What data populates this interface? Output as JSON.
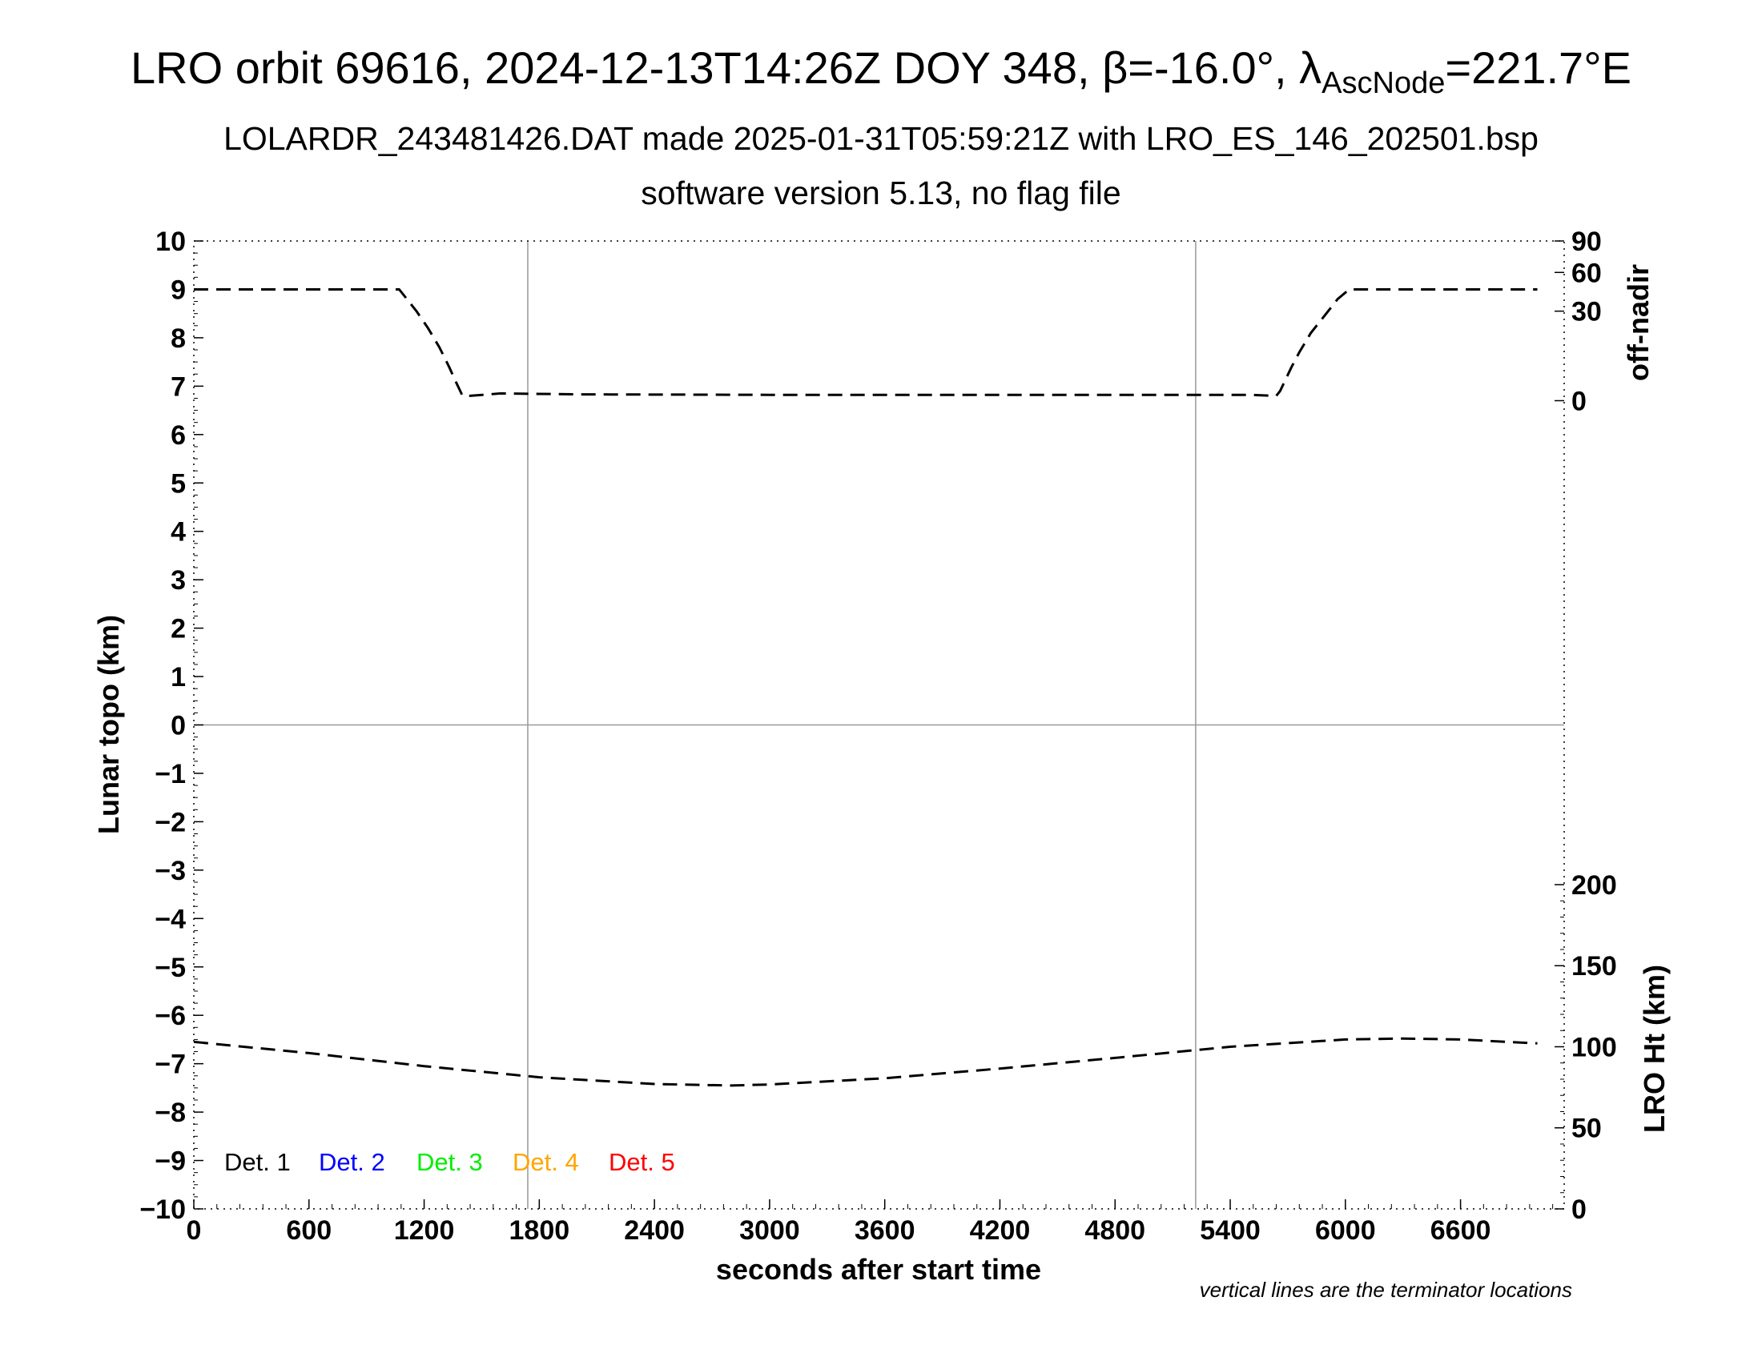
{
  "chart_data": {
    "type": "line",
    "title": {
      "main": "LRO orbit 69616, 2024-12-13T14:26Z DOY 348, β=-16.0°, λ",
      "sub": "AscNode",
      "end": "=221.7°E"
    },
    "subtitle": "LOLARDR_243481426.DAT made 2025-01-31T05:59:21Z with LRO_ES_146_202501.bsp",
    "subtitle2": "software version 5.13, no flag file",
    "xlabel": "seconds after start time",
    "ylabel_left": "Lunar topo (km)",
    "ylabel_right_top": "off-nadir",
    "ylabel_right_bottom": "LRO Ht (km)",
    "note": "vertical lines are the terminator locations",
    "xlim": [
      0,
      7140
    ],
    "ylim_left": [
      -10,
      10
    ],
    "x_ticks": [
      "0",
      "600",
      "1200",
      "1800",
      "2400",
      "3000",
      "3600",
      "4200",
      "4800",
      "5400",
      "6000",
      "6600"
    ],
    "y_ticks_left": [
      "10",
      "9",
      "8",
      "7",
      "6",
      "5",
      "4",
      "3",
      "2",
      "1",
      "0",
      "−1",
      "−2",
      "−3",
      "−4",
      "−5",
      "−6",
      "−7",
      "−8",
      "−9",
      "−10"
    ],
    "right_top_ticks": [
      "90",
      "60",
      "30",
      "0"
    ],
    "right_bottom_ticks": [
      "200",
      "150",
      "100",
      "50",
      "0"
    ],
    "terminators_x": [
      1740,
      5220
    ],
    "grid": "terminator lines and zero line",
    "legend": {
      "placement": "bottom-left",
      "entries": [
        {
          "label": "Det. 1",
          "color": "#000000"
        },
        {
          "label": "Det. 2",
          "color": "#0000ff"
        },
        {
          "label": "Det. 3",
          "color": "#00ee00"
        },
        {
          "label": "Det. 4",
          "color": "#ffa500"
        },
        {
          "label": "Det. 5",
          "color": "#ff0000"
        }
      ]
    },
    "series": [
      {
        "axis": "off-nadir (plotted on left km scale)",
        "style": "dashed",
        "x": [
          0,
          1070,
          1100,
          1160,
          1220,
          1280,
          1330,
          1370,
          1400,
          1420,
          1440,
          1600,
          2000,
          3000,
          4000,
          5000,
          5500,
          5620,
          5640,
          5660,
          5690,
          5720,
          5760,
          5820,
          5900,
          5960,
          6020,
          6300,
          7000
        ],
        "y": [
          9.0,
          9.0,
          8.85,
          8.55,
          8.2,
          7.8,
          7.4,
          7.05,
          6.8,
          6.8,
          6.8,
          6.85,
          6.83,
          6.82,
          6.82,
          6.82,
          6.82,
          6.8,
          6.8,
          6.9,
          7.15,
          7.4,
          7.7,
          8.1,
          8.5,
          8.8,
          9.0,
          9.0,
          9.0
        ]
      },
      {
        "axis": "LRO Ht (plotted on left km scale)",
        "style": "dashed",
        "x": [
          0,
          600,
          1200,
          1800,
          2400,
          2800,
          3000,
          3600,
          4200,
          4800,
          5400,
          6000,
          6300,
          6600,
          7000
        ],
        "y": [
          -6.55,
          -6.78,
          -7.05,
          -7.28,
          -7.42,
          -7.45,
          -7.43,
          -7.3,
          -7.1,
          -6.88,
          -6.65,
          -6.5,
          -6.48,
          -6.5,
          -6.58
        ]
      }
    ]
  }
}
